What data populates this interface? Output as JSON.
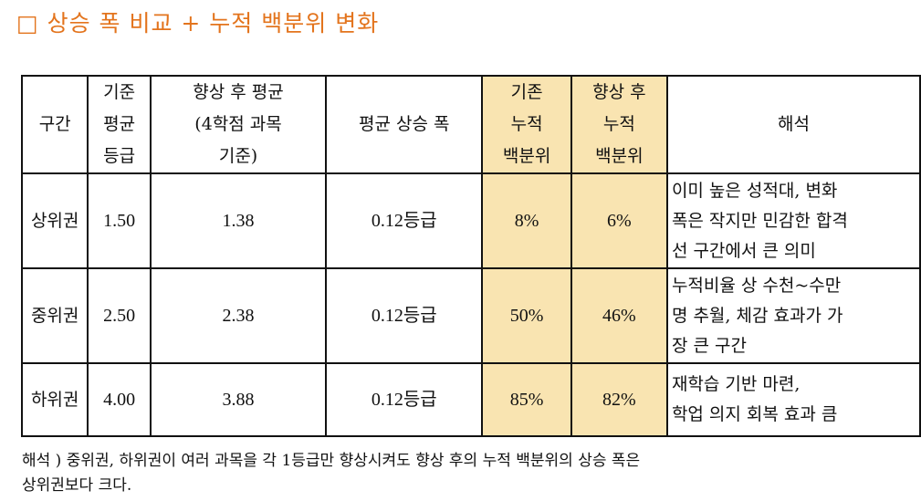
{
  "title": "□ 상승 폭 비교 + 누적 백분위 변화",
  "colors": {
    "title": "#e3741d",
    "highlight": "#f9e4b1"
  },
  "table": {
    "headers": [
      "구간",
      "기준\n평균\n등급",
      "향상 후 평균\n(4학점 과목\n기준)",
      "평균 상승 폭",
      "기존\n누적\n백분위",
      "향상 후\n누적\n백분위",
      "해석"
    ],
    "rows": [
      {
        "zone": "상위권",
        "base": "1.50",
        "after": "1.38",
        "rise": "0.12등급",
        "base_pct": "8%",
        "after_pct": "6%",
        "interp": "이미 높은 성적대, 변화\n폭은 작지만 민감한 합격\n선 구간에서 큰 의미"
      },
      {
        "zone": "중위권",
        "base": "2.50",
        "after": "2.38",
        "rise": "0.12등급",
        "base_pct": "50%",
        "after_pct": "46%",
        "interp": "누적비율 상 수천~수만\n명 추월, 체감 효과가 가\n장 큰 구간"
      },
      {
        "zone": "하위권",
        "base": "4.00",
        "after": "3.88",
        "rise": "0.12등급",
        "base_pct": "85%",
        "after_pct": "82%",
        "interp": "재학습 기반 마련,\n학업 의지 회복 효과 큼"
      }
    ]
  },
  "note": "해석 ) 중위권, 하위권이 여러 과목을 각 1등급만 향상시켜도 향상 후의 누적 백분위의 상승 폭은\n        상위권보다 크다."
}
